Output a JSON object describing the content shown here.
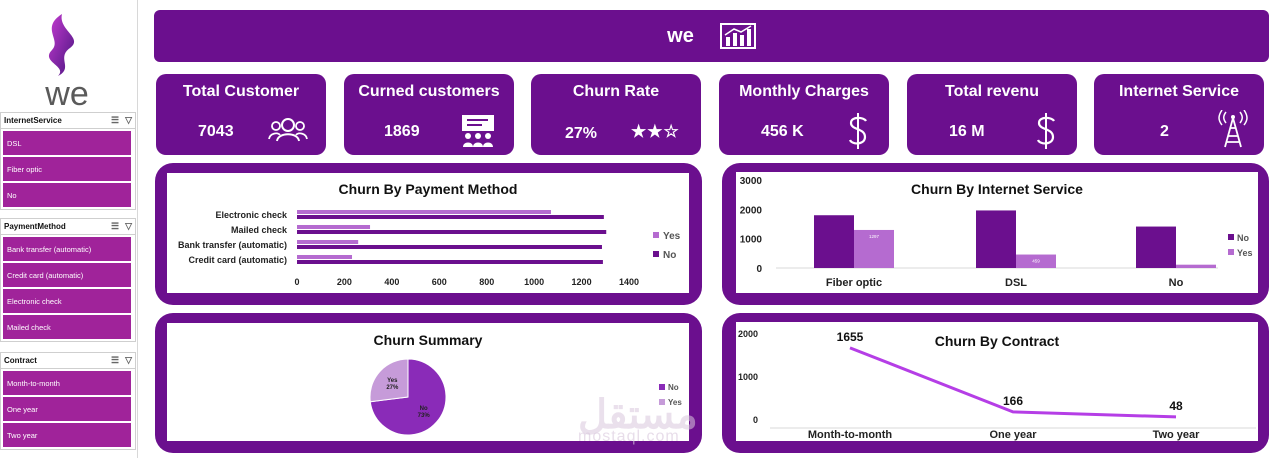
{
  "brand": {
    "logo_text": "we",
    "banner_title": "we",
    "accent": "#6b0f8e",
    "light_accent": "#b56bd0",
    "dark_bar": "#6b0f8e"
  },
  "slicers": [
    {
      "title": "InternetService",
      "items": [
        "DSL",
        "Fiber optic",
        "No"
      ]
    },
    {
      "title": "PaymentMethod",
      "items": [
        "Bank transfer (automatic)",
        "Credit card (automatic)",
        "Electronic check",
        "Mailed check"
      ]
    },
    {
      "title": "Contract",
      "items": [
        "Month-to-month",
        "One year",
        "Two year"
      ]
    }
  ],
  "kpis": [
    {
      "title": "Total Customer",
      "value": "7043",
      "icon": "users-icon"
    },
    {
      "title": "Curned customers",
      "value": "1869",
      "icon": "presentation-icon"
    },
    {
      "title": "Churn Rate",
      "value": "27%",
      "icon": "stars-icon",
      "stars": "★★☆"
    },
    {
      "title": "Monthly Charges",
      "value": "456 K",
      "icon": "dollar-icon"
    },
    {
      "title": "Total revenu",
      "value": "16 M",
      "icon": "dollar-icon"
    },
    {
      "title": "Internet Service",
      "value": "2",
      "icon": "tower-icon"
    }
  ],
  "chart_data": [
    {
      "type": "bar",
      "orientation": "horizontal",
      "title": "Churn By Payment Method",
      "categories": [
        "Electronic check",
        "Mailed check",
        "Bank transfer (automatic)",
        "Credit card (automatic)"
      ],
      "series": [
        {
          "name": "Yes",
          "values": [
            1071,
            308,
            258,
            232
          ]
        },
        {
          "name": "No",
          "values": [
            1294,
            1304,
            1286,
            1290
          ]
        }
      ],
      "xlim": [
        0,
        1400
      ],
      "xticks": [
        "0",
        "200",
        "400",
        "600",
        "800",
        "1000",
        "1200",
        "1400"
      ],
      "legend": "right"
    },
    {
      "type": "bar",
      "title": "Churn By Internet Service",
      "categories": [
        "Fiber optic",
        "DSL",
        "No"
      ],
      "series": [
        {
          "name": "No",
          "values": [
            1799,
            1962,
            1413
          ]
        },
        {
          "name": "Yes",
          "values": [
            1297,
            459,
            113
          ]
        }
      ],
      "data_labels": [
        "1297",
        "459",
        "113"
      ],
      "ylim": [
        0,
        3000
      ],
      "yticks": [
        "0",
        "1000",
        "2000",
        "3000"
      ],
      "legend": "right"
    },
    {
      "type": "pie",
      "title": "Churn Summary",
      "slices": [
        {
          "name": "No",
          "value": 73,
          "label": "No\n73%"
        },
        {
          "name": "Yes",
          "value": 27,
          "label": "Yes\n27%"
        }
      ],
      "legend": "right"
    },
    {
      "type": "line",
      "title": "Churn By Contract",
      "categories": [
        "Month-to-month",
        "One year",
        "Two year"
      ],
      "values": [
        1655,
        166,
        48
      ],
      "data_labels": [
        "1655",
        "166",
        "48"
      ],
      "ylim": [
        0,
        2000
      ],
      "yticks": [
        "0",
        "1000",
        "2000"
      ]
    }
  ],
  "watermark": {
    "text": "مستقل",
    "sub": "mostaql.com"
  }
}
